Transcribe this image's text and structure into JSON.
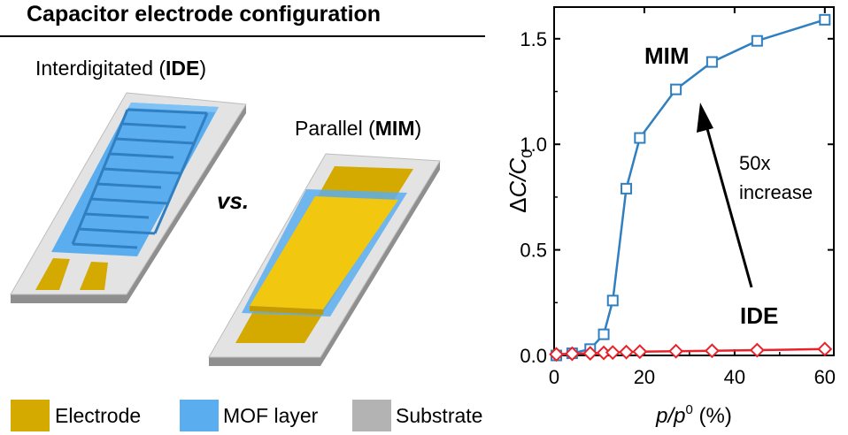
{
  "left_panel": {
    "title": "Capacitor electrode configuration",
    "ide_label": {
      "prefix": "Interdigitated (",
      "bold": "IDE",
      "suffix": ")"
    },
    "mim_label": {
      "prefix": "Parallel (",
      "bold": "MIM",
      "suffix": ")"
    },
    "vs_label": "vs.",
    "legend": [
      {
        "label": "Electrode",
        "color": "#d4a900"
      },
      {
        "label": "MOF layer",
        "color": "#5aaef0"
      },
      {
        "label": "Substrate",
        "color": "#b3b3b3"
      }
    ]
  },
  "chart_data": {
    "type": "line",
    "xlabel": "p/p0 (%)",
    "ylabel": "ΔC/C0",
    "xlim": [
      0,
      62
    ],
    "ylim": [
      0,
      1.65
    ],
    "xticks": [
      0,
      20,
      40,
      60
    ],
    "yticks": [
      0.0,
      0.5,
      1.0,
      1.5
    ],
    "ytick_labels": [
      "0.0",
      "0.5",
      "1.0",
      "1.5"
    ],
    "series": [
      {
        "name": "MIM",
        "color": "#2f7fc1",
        "marker": "square",
        "x": [
          0.5,
          4,
          8,
          11,
          13,
          16,
          19,
          27,
          35,
          45,
          60
        ],
        "y": [
          0.0,
          0.01,
          0.03,
          0.1,
          0.26,
          0.79,
          1.03,
          1.26,
          1.39,
          1.49,
          1.59
        ]
      },
      {
        "name": "IDE",
        "color": "#e8222a",
        "marker": "diamond",
        "x": [
          0.5,
          4,
          8,
          11,
          13,
          16,
          19,
          27,
          35,
          45,
          60
        ],
        "y": [
          0.005,
          0.008,
          0.01,
          0.012,
          0.014,
          0.016,
          0.018,
          0.02,
          0.022,
          0.025,
          0.03
        ]
      }
    ],
    "annotations": {
      "mim": "MIM",
      "ide": "IDE",
      "increase_line1": "50x",
      "increase_line2": "increase"
    }
  }
}
